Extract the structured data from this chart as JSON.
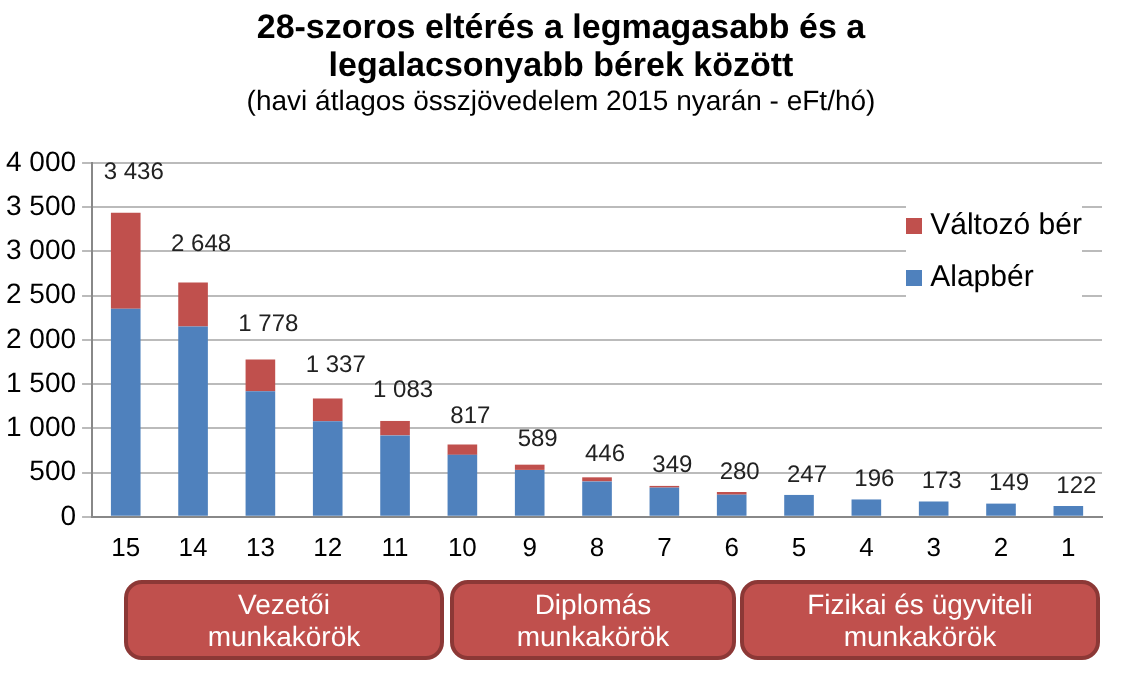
{
  "chart_data": {
    "type": "bar",
    "title": "28-szoros eltérés a legmagasabb és a legalacsonyabb bérek között",
    "subtitle": "(havi átlagos összjövedelem 2015 nyarán - eFt/hó)",
    "categories": [
      "15",
      "14",
      "13",
      "12",
      "11",
      "10",
      "9",
      "8",
      "7",
      "6",
      "5",
      "4",
      "3",
      "2",
      "1"
    ],
    "stacked": true,
    "series": [
      {
        "name": "Alapbér",
        "color": "#4f81bd",
        "values": [
          2350,
          2150,
          1420,
          1080,
          920,
          700,
          530,
          400,
          330,
          250,
          247,
          196,
          173,
          149,
          122
        ]
      },
      {
        "name": "Változó bér",
        "color": "#c0504d",
        "values": [
          1086,
          498,
          358,
          257,
          163,
          117,
          59,
          46,
          19,
          30,
          0,
          0,
          0,
          0,
          0
        ]
      }
    ],
    "totals": [
      "3 436",
      "2 648",
      "1 778",
      "1 337",
      "1 083",
      "817",
      "589",
      "446",
      "349",
      "280",
      "247",
      "196",
      "173",
      "149",
      "122"
    ],
    "ylim": [
      0,
      4000
    ],
    "yticks": [
      0,
      500,
      {
        "value": 1000,
        "label": "1 000"
      },
      {
        "value": 1500,
        "label": "1 500"
      },
      {
        "value": 2000,
        "label": "2 000"
      },
      {
        "value": 2500,
        "label": "2 500"
      },
      {
        "value": 3000,
        "label": "3 000"
      },
      {
        "value": 3500,
        "label": "3 500"
      },
      {
        "value": 4000,
        "label": "4 000"
      }
    ],
    "grid": "y",
    "legend": "top right",
    "annotations": [
      "Vezetői munkakörök",
      "Diplomás munkakörök",
      "Fizikai és ügyviteli munkakörök"
    ]
  }
}
